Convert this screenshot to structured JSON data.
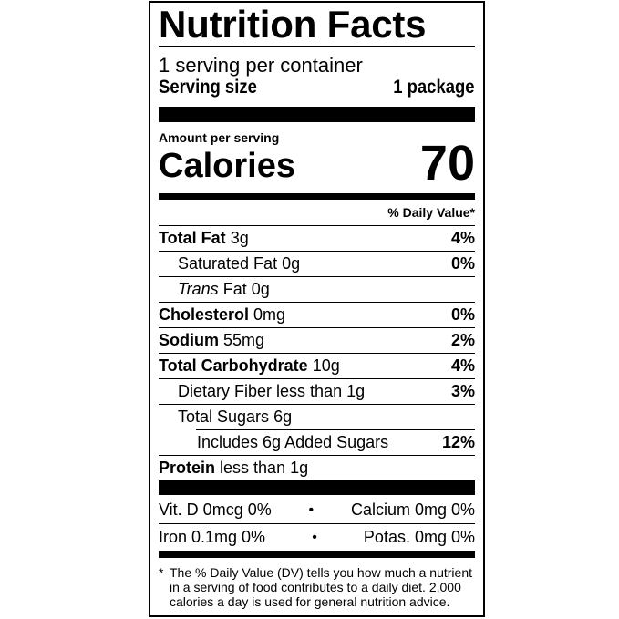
{
  "title": "Nutrition Facts",
  "servings_per_container": "1 serving per container",
  "serving_size": {
    "label": "Serving size",
    "value": "1 package"
  },
  "amount_per_serving": "Amount per serving",
  "calories": {
    "label": "Calories",
    "value": "70"
  },
  "daily_value_header": "% Daily Value*",
  "nutrients": [
    {
      "name": "Total Fat",
      "amount": "3g",
      "dv": "4%"
    },
    {
      "name": "Saturated Fat",
      "amount": "0g",
      "dv": "0%"
    },
    {
      "name": "Trans",
      "name_suffix": "Fat",
      "amount": "0g",
      "dv": ""
    },
    {
      "name": "Cholesterol",
      "amount": "0mg",
      "dv": "0%"
    },
    {
      "name": "Sodium",
      "amount": "55mg",
      "dv": "2%"
    },
    {
      "name": "Total Carbohydrate",
      "amount": "10g",
      "dv": "4%"
    },
    {
      "name": "Dietary Fiber",
      "amount": "less than 1g",
      "dv": "3%"
    },
    {
      "name": "Total Sugars",
      "amount": "6g",
      "dv": ""
    },
    {
      "name": "Includes 6g Added Sugars",
      "amount": "",
      "dv": "12%"
    },
    {
      "name": "Protein",
      "amount": "less than 1g",
      "dv": ""
    }
  ],
  "minerals": [
    {
      "left": "Vit. D 0mcg 0%",
      "right": "Calcium 0mg 0%"
    },
    {
      "left": "Iron 0.1mg 0%",
      "right": "Potas. 0mg 0%"
    }
  ],
  "separator": "•",
  "footnote": {
    "star": "*",
    "text": "The % Daily Value (DV) tells you how much a nutrient in a serving of food contributes to a daily diet. 2,000 calories a day is used for general nutrition advice."
  }
}
